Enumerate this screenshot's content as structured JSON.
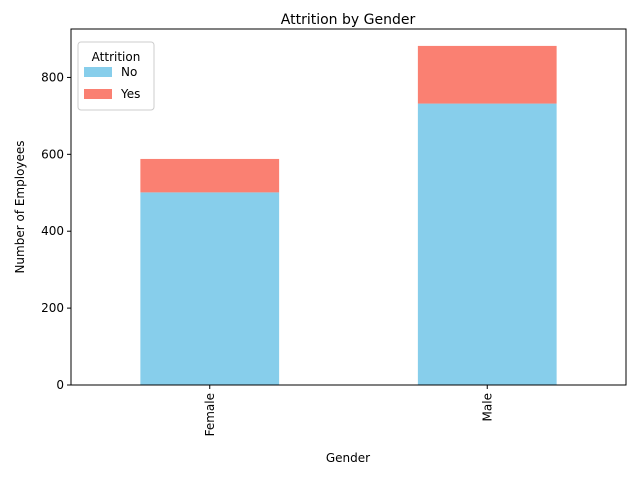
{
  "chart_data": {
    "type": "bar",
    "stacked": true,
    "title": "Attrition by Gender",
    "xlabel": "Gender",
    "ylabel": "Number of Employees",
    "categories": [
      "Female",
      "Male"
    ],
    "series": [
      {
        "name": "No",
        "values": [
          501,
          732
        ],
        "color": "#87ceeb"
      },
      {
        "name": "Yes",
        "values": [
          87,
          150
        ],
        "color": "#fa8072"
      }
    ],
    "ylim": [
      0,
      926
    ],
    "yticks": [
      0,
      200,
      400,
      600,
      800
    ],
    "grid": false,
    "legend": {
      "title": "Attrition",
      "placement": "top-left"
    }
  }
}
